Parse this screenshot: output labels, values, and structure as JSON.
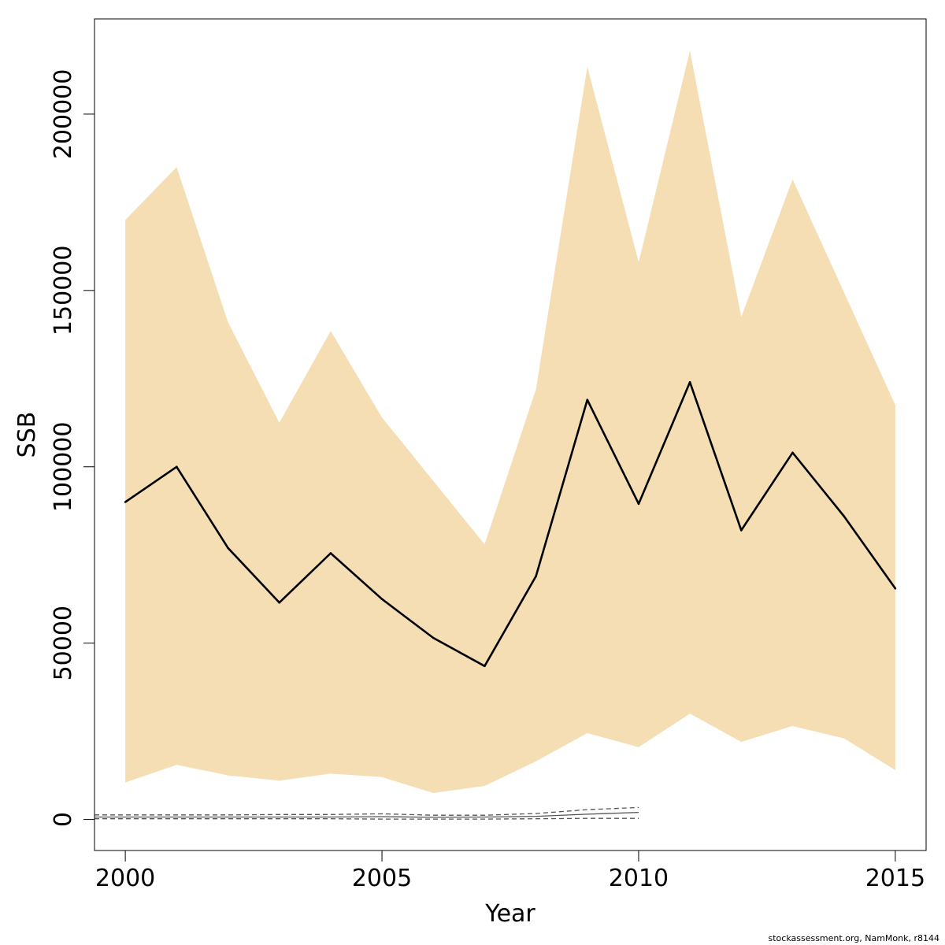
{
  "chart_data": {
    "type": "line",
    "title": "",
    "xlabel": "Year",
    "ylabel": "SSB",
    "xlim": [
      1999.4,
      2015.6
    ],
    "ylim": [
      -8800,
      227000
    ],
    "xticks": [
      2000,
      2005,
      2010,
      2015
    ],
    "yticks": [
      0,
      50000,
      100000,
      150000,
      200000
    ],
    "grid": false,
    "legend": "none",
    "colors": {
      "band": "#f5deb3",
      "line": "#000000",
      "retro": "#555555",
      "frame": "#000000"
    },
    "series": [
      {
        "role": "estimate",
        "x": [
          2000,
          2001,
          2002,
          2003,
          2004,
          2005,
          2006,
          2007,
          2008,
          2009,
          2010,
          2011,
          2012,
          2013,
          2014,
          2015
        ],
        "values": [
          90000,
          100000,
          77000,
          61500,
          75500,
          62500,
          51500,
          43500,
          69000,
          119000,
          89500,
          124000,
          82000,
          104000,
          86000,
          65500
        ],
        "lower": [
          10500,
          15500,
          12500,
          11000,
          13000,
          12000,
          7500,
          9500,
          16500,
          24500,
          20500,
          30000,
          22000,
          26500,
          23000,
          14000
        ],
        "upper": [
          170000,
          185000,
          141000,
          112500,
          138500,
          114000,
          96000,
          78000,
          122000,
          213500,
          158000,
          218000,
          142500,
          181500,
          149500,
          117500
        ]
      },
      {
        "role": "retrospective",
        "x": [
          1999.4,
          2000,
          2001,
          2002,
          2003,
          2004,
          2005,
          2006,
          2007,
          2008,
          2009,
          2010
        ],
        "values": [
          700,
          700,
          700,
          700,
          700,
          700,
          800,
          600,
          700,
          900,
          1500,
          2000
        ],
        "lower": [
          200,
          200,
          200,
          200,
          200,
          200,
          100,
          100,
          100,
          200,
          300,
          300
        ],
        "upper": [
          1300,
          1300,
          1300,
          1300,
          1400,
          1400,
          1600,
          1200,
          1200,
          1700,
          2800,
          3400
        ]
      }
    ]
  },
  "footer": "stockassessment.org, NamMonk, r8144"
}
